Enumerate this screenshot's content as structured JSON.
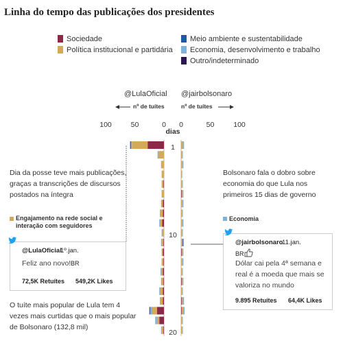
{
  "title": "Linha do tempo das publicações dos presidentes",
  "legend": [
    {
      "label": "Sociedade",
      "color": "#8c2946"
    },
    {
      "label": "Política institucional e partidária",
      "color": "#d4a95a"
    },
    {
      "label": "Meio ambiente e sustentabilidade",
      "color": "#1f5aa6"
    },
    {
      "label": "Economia, desenvolvimento e trabalho",
      "color": "#7fb2d9"
    },
    {
      "label": "Outro/indeterminado",
      "color": "#2a1752"
    }
  ],
  "left_header": {
    "handle": "@LulaOficial",
    "unit": "nº de tuítes"
  },
  "right_header": {
    "handle": "@jairbolsonaro",
    "unit": "nº de tuítes"
  },
  "annotations": {
    "lula_posse": "Dia da posse teve mais publicações, graças a transcrições de discursos postados na íntegra",
    "bolsonaro_economia": "Bolsonaro fala o dobro sobre economia do que Lula nos primeiros 15 dias de governo",
    "lula_popular": "O tuíte mais popular de Lula tem 4 vezes mais curtidas que o mais popular de Bolsonaro (132,8 mil)"
  },
  "tag_left": "Engajamento na rede social e interação com seguidores",
  "tag_right": "Economia",
  "tweet_lula": {
    "handle": "@LulaOficial",
    "date": "1º.jan.",
    "text": "Feliz ano novo!",
    "flag": "BR",
    "retweets": "72,5K Retuítes",
    "likes": "549,2K Likes"
  },
  "tweet_bolsonaro": {
    "handle": "@jairbolsonaro",
    "date": "11.jan.",
    "flag": "BR",
    "text": "Dólar cai pela 4ª semana e real é a moeda que mais se valoriza no mundo",
    "retweets": "9.895 Retuítes",
    "likes": "64,4K Likes"
  },
  "chart_data": {
    "type": "bar",
    "orientation": "horizontal-diverging",
    "ylabel": "dias",
    "y_ticks": [
      1,
      10,
      20
    ],
    "x_ticks": [
      100,
      50,
      0
    ],
    "x_ticks_right": [
      0,
      50,
      100
    ],
    "xlim": [
      0,
      100
    ],
    "ylim": [
      1,
      20
    ],
    "categories": [
      "Sociedade",
      "Política institucional e partidária",
      "Meio ambiente e sustentabilidade",
      "Economia, desenvolvimento e trabalho",
      "Outro/indeterminado"
    ],
    "lula": [
      {
        "day": 1,
        "values": [
          28,
          27,
          0,
          2,
          1
        ]
      },
      {
        "day": 2,
        "values": [
          0,
          10,
          0,
          1,
          0
        ]
      },
      {
        "day": 3,
        "values": [
          0,
          5,
          0,
          0,
          0
        ]
      },
      {
        "day": 4,
        "values": [
          0,
          4,
          0,
          0,
          0
        ]
      },
      {
        "day": 5,
        "values": [
          1,
          3,
          0,
          0,
          0
        ]
      },
      {
        "day": 6,
        "values": [
          0,
          4,
          0,
          0,
          0
        ]
      },
      {
        "day": 7,
        "values": [
          2,
          3,
          0,
          0,
          0
        ]
      },
      {
        "day": 8,
        "values": [
          2,
          4,
          0,
          1,
          0
        ]
      },
      {
        "day": 9,
        "values": [
          3,
          4,
          0,
          1,
          0
        ]
      },
      {
        "day": 10,
        "values": [
          0,
          3,
          0,
          1,
          0
        ]
      },
      {
        "day": 11,
        "values": [
          1,
          3,
          0,
          1,
          0
        ]
      },
      {
        "day": 12,
        "values": [
          2,
          2,
          0,
          0,
          0
        ]
      },
      {
        "day": 13,
        "values": [
          1,
          3,
          0,
          0,
          0
        ]
      },
      {
        "day": 14,
        "values": [
          2,
          3,
          0,
          1,
          0
        ]
      },
      {
        "day": 15,
        "values": [
          1,
          4,
          0,
          0,
          0
        ]
      },
      {
        "day": 16,
        "values": [
          2,
          5,
          0,
          1,
          0
        ]
      },
      {
        "day": 17,
        "values": [
          2,
          4,
          0,
          1,
          0
        ]
      },
      {
        "day": 18,
        "values": [
          12,
          8,
          0,
          4,
          1
        ]
      },
      {
        "day": 19,
        "values": [
          8,
          4,
          0,
          3,
          0
        ]
      },
      {
        "day": 20,
        "values": [
          1,
          3,
          0,
          1,
          0
        ]
      }
    ],
    "bolsonaro": [
      {
        "day": 1,
        "values": [
          0,
          3,
          0,
          2,
          0
        ]
      },
      {
        "day": 2,
        "values": [
          0,
          2,
          0,
          1,
          0
        ]
      },
      {
        "day": 3,
        "values": [
          0,
          2,
          0,
          2,
          0
        ]
      },
      {
        "day": 4,
        "values": [
          0,
          1,
          0,
          1,
          0
        ]
      },
      {
        "day": 5,
        "values": [
          0,
          2,
          0,
          1,
          0
        ]
      },
      {
        "day": 6,
        "values": [
          1,
          2,
          0,
          1,
          0
        ]
      },
      {
        "day": 7,
        "values": [
          0,
          2,
          0,
          2,
          0
        ]
      },
      {
        "day": 8,
        "values": [
          0,
          2,
          0,
          1,
          0
        ]
      },
      {
        "day": 9,
        "values": [
          0,
          2,
          0,
          2,
          0
        ]
      },
      {
        "day": 10,
        "values": [
          0,
          2,
          0,
          1,
          0
        ]
      },
      {
        "day": 11,
        "values": [
          0,
          1,
          0,
          2,
          1
        ]
      },
      {
        "day": 12,
        "values": [
          1,
          2,
          0,
          1,
          0
        ]
      },
      {
        "day": 13,
        "values": [
          0,
          2,
          0,
          2,
          0
        ]
      },
      {
        "day": 14,
        "values": [
          0,
          2,
          0,
          1,
          0
        ]
      },
      {
        "day": 15,
        "values": [
          1,
          2,
          0,
          1,
          0
        ]
      },
      {
        "day": 16,
        "values": [
          0,
          2,
          0,
          1,
          0
        ]
      },
      {
        "day": 17,
        "values": [
          1,
          2,
          0,
          2,
          0
        ]
      },
      {
        "day": 18,
        "values": [
          1,
          3,
          0,
          2,
          0
        ]
      },
      {
        "day": 19,
        "values": [
          0,
          2,
          0,
          1,
          0
        ]
      },
      {
        "day": 20,
        "values": [
          0,
          2,
          0,
          1,
          0
        ]
      }
    ]
  }
}
